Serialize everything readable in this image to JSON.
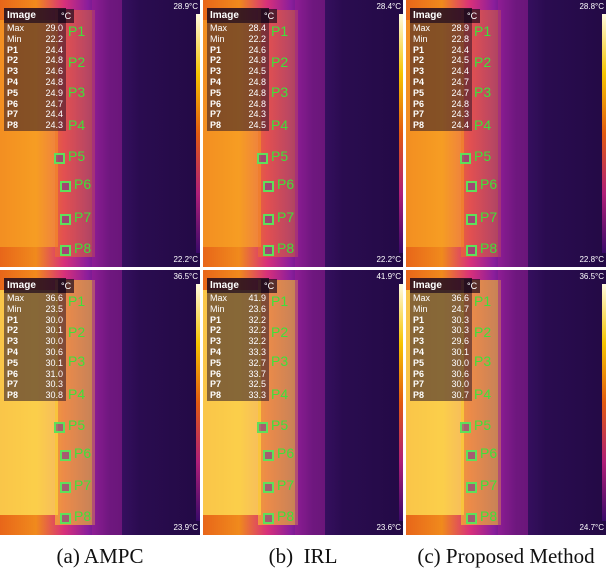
{
  "panels": [
    {
      "readout": {
        "title": "Image",
        "unit": "°C",
        "rows": [
          [
            "Max",
            "29.0"
          ],
          [
            "Min",
            "22.2"
          ],
          [
            "P1",
            "24.4"
          ],
          [
            "P2",
            "24.8"
          ],
          [
            "P3",
            "24.6"
          ],
          [
            "P4",
            "24.8"
          ],
          [
            "P5",
            "24.9"
          ],
          [
            "P6",
            "24.7"
          ],
          [
            "P7",
            "24.4"
          ],
          [
            "P8",
            "24.3"
          ]
        ]
      },
      "scale_max": "28.9°C",
      "scale_min": "22.2°C",
      "point_labels": [
        "P1",
        "P2",
        "P3",
        "P4",
        "P5",
        "P6",
        "P7",
        "P8"
      ]
    },
    {
      "readout": {
        "title": "Image",
        "unit": "°C",
        "rows": [
          [
            "Max",
            "28.4"
          ],
          [
            "Min",
            "22.2"
          ],
          [
            "P1",
            "24.6"
          ],
          [
            "P2",
            "24.8"
          ],
          [
            "P3",
            "24.5"
          ],
          [
            "P4",
            "24.8"
          ],
          [
            "P5",
            "24.8"
          ],
          [
            "P6",
            "24.8"
          ],
          [
            "P7",
            "24.3"
          ],
          [
            "P8",
            "24.5"
          ]
        ]
      },
      "scale_max": "28.4°C",
      "scale_min": "22.2°C",
      "point_labels": [
        "P1",
        "P2",
        "P3",
        "P4",
        "P5",
        "P6",
        "P7",
        "P8"
      ]
    },
    {
      "readout": {
        "title": "Image",
        "unit": "°C",
        "rows": [
          [
            "Max",
            "28.9"
          ],
          [
            "Min",
            "22.8"
          ],
          [
            "P1",
            "24.4"
          ],
          [
            "P2",
            "24.5"
          ],
          [
            "P3",
            "24.4"
          ],
          [
            "P4",
            "24.7"
          ],
          [
            "P5",
            "24.7"
          ],
          [
            "P6",
            "24.8"
          ],
          [
            "P7",
            "24.3"
          ],
          [
            "P8",
            "24.4"
          ]
        ]
      },
      "scale_max": "28.8°C",
      "scale_min": "22.8°C",
      "point_labels": [
        "P1",
        "P2",
        "P3",
        "P4",
        "P5",
        "P6",
        "P7",
        "P8"
      ]
    },
    {
      "readout": {
        "title": "Image",
        "unit": "°C",
        "rows": [
          [
            "Max",
            "36.6"
          ],
          [
            "Min",
            "23.5"
          ],
          [
            "P1",
            "30.0"
          ],
          [
            "P2",
            "30.1"
          ],
          [
            "P3",
            "30.0"
          ],
          [
            "P4",
            "30.6"
          ],
          [
            "P5",
            "30.1"
          ],
          [
            "P6",
            "31.0"
          ],
          [
            "P7",
            "30.3"
          ],
          [
            "P8",
            "30.8"
          ]
        ]
      },
      "scale_max": "36.5°C",
      "scale_min": "23.9°C",
      "point_labels": [
        "P1",
        "P2",
        "P3",
        "P4",
        "P5",
        "P6",
        "P7",
        "P8"
      ]
    },
    {
      "readout": {
        "title": "Image",
        "unit": "°C",
        "rows": [
          [
            "Max",
            "41.9"
          ],
          [
            "Min",
            "23.6"
          ],
          [
            "P1",
            "32.2"
          ],
          [
            "P2",
            "32.2"
          ],
          [
            "P3",
            "32.2"
          ],
          [
            "P4",
            "33.3"
          ],
          [
            "P5",
            "32.7"
          ],
          [
            "P6",
            "33.7"
          ],
          [
            "P7",
            "32.5"
          ],
          [
            "P8",
            "33.3"
          ]
        ]
      },
      "scale_max": "41.9°C",
      "scale_min": "23.6°C",
      "point_labels": [
        "P1",
        "P2",
        "P3",
        "P4",
        "P5",
        "P6",
        "P7",
        "P8"
      ]
    },
    {
      "readout": {
        "title": "Image",
        "unit": "°C",
        "rows": [
          [
            "Max",
            "36.6"
          ],
          [
            "Min",
            "24.7"
          ],
          [
            "P1",
            "30.3"
          ],
          [
            "P2",
            "30.3"
          ],
          [
            "P3",
            "29.6"
          ],
          [
            "P4",
            "30.1"
          ],
          [
            "P5",
            "30.0"
          ],
          [
            "P6",
            "30.6"
          ],
          [
            "P7",
            "30.0"
          ],
          [
            "P8",
            "30.7"
          ]
        ]
      },
      "scale_max": "36.5°C",
      "scale_min": "24.7°C",
      "point_labels": [
        "P1",
        "P2",
        "P3",
        "P4",
        "P5",
        "P6",
        "P7",
        "P8"
      ]
    }
  ],
  "captions": [
    "(a) AMPC",
    "(b)  IRL",
    "(c) Proposed Method"
  ]
}
